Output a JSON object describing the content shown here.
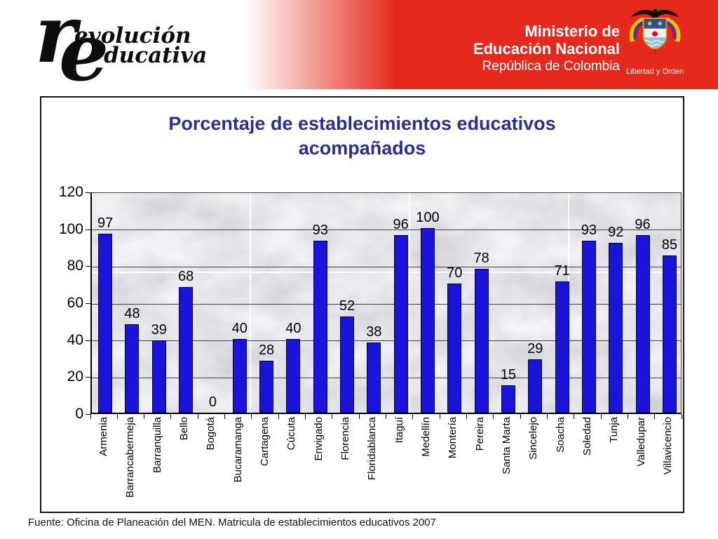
{
  "header": {
    "logo_big1": "r",
    "logo_word1": "evolución",
    "logo_big2": "e",
    "logo_word2": "ducativa",
    "ministry_line1": "Ministerio de",
    "ministry_line2": "Educación Nacional",
    "ministry_line3": "República de Colombia",
    "crest_motto": "Libertad y Orden"
  },
  "colors": {
    "header-red": "#e52a1d",
    "bar-fill": "#1a13dc",
    "bar-border": "#000030",
    "title-blue": "#2b2e8c"
  },
  "chart_data": {
    "type": "bar",
    "title": "Porcentaje de establecimientos educativos acompañados",
    "categories": [
      "Armenia",
      "Barrancabermeja",
      "Barranquilla",
      "Bello",
      "Bogotá",
      "Bucaramanga",
      "Cartagena",
      "Cúcuta",
      "Envigado",
      "Florencia",
      "Floridablanca",
      "Itaguí",
      "Medellín",
      "Montería",
      "Pereira",
      "Santa Marta",
      "Sincelejo",
      "Soacha",
      "Soledad",
      "Tunja",
      "Valledupar",
      "Villavicencio"
    ],
    "values": [
      97,
      48,
      39,
      68,
      0,
      40,
      28,
      40,
      93,
      52,
      38,
      96,
      100,
      70,
      78,
      15,
      29,
      71,
      93,
      92,
      96,
      85
    ],
    "xlabel": "",
    "ylabel": "",
    "ylim": [
      0,
      120
    ],
    "yticks": [
      0,
      20,
      40,
      60,
      80,
      100,
      120
    ],
    "grid": true,
    "legend": false,
    "plot_background": "marble"
  },
  "footer": {
    "source": "Fuente: Oficina de Planeación del MEN. Matricula de establecimientos educativos 2007"
  }
}
